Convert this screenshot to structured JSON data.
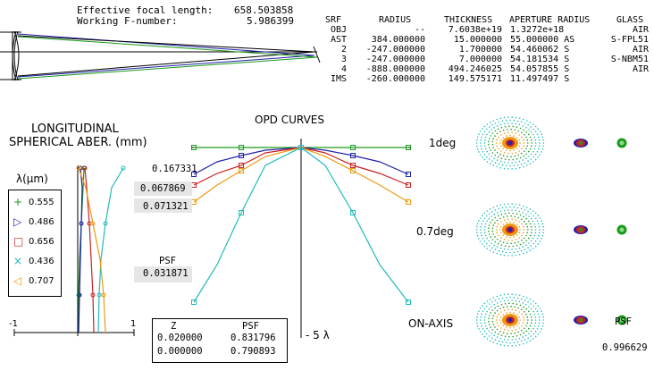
{
  "header": {
    "efl_label": "Effective focal length:",
    "efl_value": "658.503858",
    "fnum_label": "Working F-number:",
    "fnum_value": "5.986399"
  },
  "lens_table": {
    "columns": [
      "SRF",
      "RADIUS",
      "THICKNESS",
      "APERTURE RADIUS",
      "GLASS"
    ],
    "rows": [
      [
        "OBJ",
        "--",
        "7.6038e+19",
        "1.3272e+18",
        "AIR"
      ],
      [
        "AST",
        "384.000000",
        "15.000000",
        "55.000000 AS",
        "S-FPL51"
      ],
      [
        "2",
        "-247.000000",
        "1.700000",
        "54.460062 S",
        "AIR"
      ],
      [
        "3",
        "-247.000000",
        "7.000000",
        "54.181534 S",
        "S-NBM51"
      ],
      [
        "4",
        "-888.000000",
        "494.246025",
        "54.057855 S",
        "AIR"
      ],
      [
        "IMS",
        "-260.000000",
        "149.575171",
        "11.497497 S",
        ""
      ]
    ]
  },
  "lsa": {
    "title1": "LONGITUDINAL",
    "title2": "SPHERICAL ABER. (mm)",
    "lambda_label": "λ(μm)",
    "axis_min": "-1",
    "axis_max": "1",
    "legend": [
      {
        "symbol": "+",
        "label": "0.555",
        "color": "#1a9a1a"
      },
      {
        "symbol": "▷",
        "label": "0.486",
        "color": "#2222aa"
      },
      {
        "symbol": "□",
        "label": "0.656",
        "color": "#cc2222"
      },
      {
        "symbol": "×",
        "label": "0.436",
        "color": "#22bbbb"
      },
      {
        "symbol": "◁",
        "label": "0.707",
        "color": "#ee9911"
      }
    ]
  },
  "opd": {
    "title": "OPD CURVES",
    "scale_label": "- 5 λ",
    "values": [
      "0.167331",
      "0.067869",
      "0.071321"
    ],
    "psf_label": "PSF",
    "psf_value": "0.031871"
  },
  "psf_table": {
    "col1": "Z",
    "col2": "PSF",
    "rows": [
      [
        "0.020000",
        "0.831796"
      ],
      [
        "0.000000",
        "0.790893"
      ]
    ]
  },
  "spots": {
    "field_labels": [
      "1deg",
      "0.7deg",
      "ON-AXIS"
    ],
    "psf_label": "PSF",
    "psf_value": "0.996629"
  }
}
